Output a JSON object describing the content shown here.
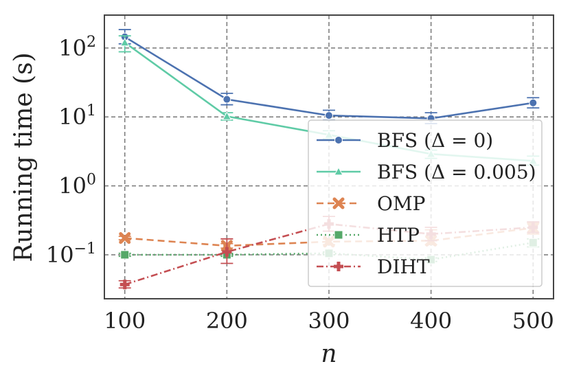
{
  "chart_data": {
    "type": "line",
    "yscale": "log",
    "xlabel": "n",
    "ylabel": "Running time (s)",
    "x": [
      100,
      200,
      300,
      400,
      500
    ],
    "xlim": [
      80,
      520
    ],
    "ylim": [
      0.023,
      300
    ],
    "x_ticks": [
      100,
      200,
      300,
      400,
      500
    ],
    "y_ticks": [
      {
        "value": 100,
        "base": "10",
        "exp": "2"
      },
      {
        "value": 10,
        "base": "10",
        "exp": "1"
      },
      {
        "value": 1,
        "base": "10",
        "exp": "0"
      },
      {
        "value": 0.1,
        "base": "10",
        "exp": "−1"
      }
    ],
    "grid": true,
    "legend_position": "center-right",
    "series": [
      {
        "name": "BFS (Δ = 0)",
        "color": "#4c72b0",
        "dash": "solid",
        "marker": "circle",
        "values": [
          145,
          18,
          10.5,
          9.5,
          16
        ],
        "err_low": [
          115,
          15,
          9,
          8,
          13.5
        ],
        "err_high": [
          185,
          22,
          12.5,
          11.5,
          19
        ]
      },
      {
        "name": "BFS (Δ = 0.005)",
        "color": "#5fcba6",
        "dash": "solid",
        "marker": "triangle",
        "values": [
          120,
          10.2,
          5.5,
          2.9,
          2.3
        ],
        "err_low": [
          88,
          9,
          4.8,
          2.5,
          2.0
        ],
        "err_high": [
          150,
          11.5,
          6.3,
          3.3,
          2.7
        ]
      },
      {
        "name": "OMP",
        "color": "#dd8452",
        "dash": "dashed",
        "marker": "x",
        "values": [
          0.175,
          0.135,
          0.155,
          0.16,
          0.245
        ],
        "err_low": [
          0.165,
          0.125,
          0.14,
          0.14,
          0.2
        ],
        "err_high": [
          0.185,
          0.145,
          0.17,
          0.23,
          0.29
        ]
      },
      {
        "name": "HTP",
        "color": "#55a868",
        "dash": "dotted",
        "marker": "square",
        "values": [
          0.1,
          0.1,
          0.105,
          0.085,
          0.15
        ],
        "err_low": [
          0.095,
          0.095,
          0.1,
          0.08,
          0.13
        ],
        "err_high": [
          0.105,
          0.105,
          0.11,
          0.09,
          0.17
        ]
      },
      {
        "name": "DIHT",
        "color": "#c44e52",
        "dash": "dashdot",
        "marker": "plus",
        "values": [
          0.037,
          0.11,
          0.28,
          0.2,
          0.25
        ],
        "err_low": [
          0.033,
          0.075,
          0.22,
          0.16,
          0.21
        ],
        "err_high": [
          0.042,
          0.17,
          0.36,
          0.25,
          0.3
        ]
      }
    ]
  }
}
